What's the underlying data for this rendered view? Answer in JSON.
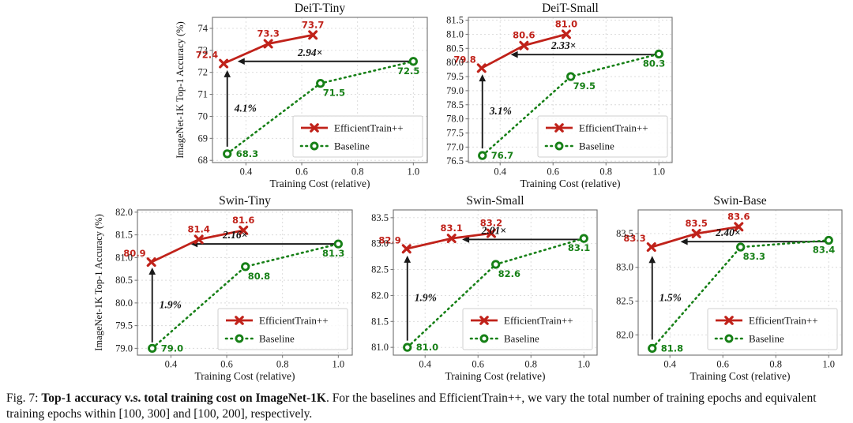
{
  "figure": {
    "caption": {
      "prefix": "Fig. 7: ",
      "bold": "Top-1 accuracy v.s. total training cost on ImageNet-1K",
      "rest": ". For the baselines and EfficientTrain++, we vary the total number of training epochs and equivalent training epochs within [100, 300] and [100, 200], respectively."
    }
  },
  "colors": {
    "efficienttrain": "#c0221a",
    "baseline": "#178017",
    "arrow": "#1a1a1a",
    "grid": "#d9d9d9",
    "spine": "#707070",
    "tick_text": "#1c1c1c"
  },
  "legend": {
    "efficienttrain_label": "EfficientTrain++",
    "baseline_label": "Baseline",
    "position": "lower right"
  },
  "chart_data": [
    {
      "type": "line",
      "title": "DeiT-Tiny",
      "xlabel": "Training Cost (relative)",
      "ylabel": "ImageNet-1K Top-1 Accuracy (%)",
      "xlim": [
        0.28,
        1.05
      ],
      "ylim": [
        67.9,
        74.5
      ],
      "xticks": [
        0.4,
        0.6,
        0.8,
        1.0
      ],
      "yticks": [
        68,
        69,
        70,
        71,
        72,
        73,
        74
      ],
      "ytick_decimals": 0,
      "grid": true,
      "series": [
        {
          "name": "EfficientTrain++",
          "x": [
            0.32,
            0.48,
            0.64
          ],
          "y": [
            72.4,
            73.3,
            73.7
          ],
          "point_labels": [
            "72.4",
            "73.3",
            "73.7"
          ]
        },
        {
          "name": "Baseline",
          "x": [
            0.333,
            0.667,
            1.0
          ],
          "y": [
            68.3,
            71.5,
            72.5
          ],
          "point_labels": [
            "68.3",
            "71.5",
            "72.5"
          ]
        }
      ],
      "speedup_annotation": {
        "text": "2.94×",
        "y": 72.5,
        "x_from": 1.0,
        "x_to": 0.37,
        "text_x": 0.63
      },
      "gain_annotation": {
        "text": "4.1%",
        "x": 0.333,
        "y_from": 68.62,
        "y_to": 72.1
      }
    },
    {
      "type": "line",
      "title": "DeiT-Small",
      "xlabel": "Training Cost (relative)",
      "ylabel": "",
      "xlim": [
        0.28,
        1.05
      ],
      "ylim": [
        76.45,
        81.6
      ],
      "xticks": [
        0.4,
        0.6,
        0.8,
        1.0
      ],
      "yticks": [
        76.5,
        77.0,
        77.5,
        78.0,
        78.5,
        79.0,
        79.5,
        80.0,
        80.5,
        81.0,
        81.5
      ],
      "ytick_decimals": 1,
      "grid": true,
      "series": [
        {
          "name": "EfficientTrain++",
          "x": [
            0.33,
            0.49,
            0.65
          ],
          "y": [
            79.8,
            80.6,
            81.0
          ],
          "point_labels": [
            "79.8",
            "80.6",
            "81.0"
          ]
        },
        {
          "name": "Baseline",
          "x": [
            0.333,
            0.667,
            1.0
          ],
          "y": [
            76.7,
            79.5,
            80.3
          ],
          "point_labels": [
            "76.7",
            "79.5",
            "80.3"
          ]
        }
      ],
      "speedup_annotation": {
        "text": "2.33×",
        "y": 80.28,
        "x_from": 1.0,
        "x_to": 0.44,
        "text_x": 0.64
      },
      "gain_annotation": {
        "text": "3.1%",
        "x": 0.333,
        "y_from": 76.95,
        "y_to": 79.58
      }
    },
    {
      "type": "line",
      "title": "Swin-Tiny",
      "xlabel": "Training Cost (relative)",
      "ylabel": "ImageNet-1K Top-1 Accuracy (%)",
      "xlim": [
        0.28,
        1.05
      ],
      "ylim": [
        78.85,
        82.05
      ],
      "xticks": [
        0.4,
        0.6,
        0.8,
        1.0
      ],
      "yticks": [
        79.0,
        79.5,
        80.0,
        80.5,
        81.0,
        81.5,
        82.0
      ],
      "ytick_decimals": 1,
      "grid": true,
      "series": [
        {
          "name": "EfficientTrain++",
          "x": [
            0.33,
            0.5,
            0.66
          ],
          "y": [
            80.9,
            81.4,
            81.6
          ],
          "point_labels": [
            "80.9",
            "81.4",
            "81.6"
          ]
        },
        {
          "name": "Baseline",
          "x": [
            0.333,
            0.667,
            1.0
          ],
          "y": [
            79.0,
            80.8,
            81.3
          ],
          "point_labels": [
            "79.0",
            "80.8",
            "81.3"
          ]
        }
      ],
      "speedup_annotation": {
        "text": "2.16×",
        "y": 81.3,
        "x_from": 1.0,
        "x_to": 0.47,
        "text_x": 0.63
      },
      "gain_annotation": {
        "text": "1.9%",
        "x": 0.333,
        "y_from": 79.13,
        "y_to": 80.78
      }
    },
    {
      "type": "line",
      "title": "Swin-Small",
      "xlabel": "Training Cost (relative)",
      "ylabel": "",
      "xlim": [
        0.28,
        1.05
      ],
      "ylim": [
        80.85,
        83.65
      ],
      "xticks": [
        0.4,
        0.6,
        0.8,
        1.0
      ],
      "yticks": [
        81.0,
        81.5,
        82.0,
        82.5,
        83.0,
        83.5
      ],
      "ytick_decimals": 1,
      "grid": true,
      "series": [
        {
          "name": "EfficientTrain++",
          "x": [
            0.33,
            0.5,
            0.65
          ],
          "y": [
            82.9,
            83.1,
            83.2
          ],
          "point_labels": [
            "82.9",
            "83.1",
            "83.2"
          ]
        },
        {
          "name": "Baseline",
          "x": [
            0.333,
            0.667,
            1.0
          ],
          "y": [
            81.0,
            82.6,
            83.1
          ],
          "point_labels": [
            "81.0",
            "82.6",
            "83.1"
          ]
        }
      ],
      "speedup_annotation": {
        "text": "2.01×",
        "y": 83.08,
        "x_from": 1.0,
        "x_to": 0.54,
        "text_x": 0.66
      },
      "gain_annotation": {
        "text": "1.9%",
        "x": 0.333,
        "y_from": 81.13,
        "y_to": 82.77
      }
    },
    {
      "type": "line",
      "title": "Swin-Base",
      "xlabel": "Training Cost (relative)",
      "ylabel": "",
      "xlim": [
        0.28,
        1.05
      ],
      "ylim": [
        81.7,
        83.85
      ],
      "xticks": [
        0.4,
        0.6,
        0.8,
        1.0
      ],
      "yticks": [
        82.0,
        82.5,
        83.0,
        83.5
      ],
      "ytick_decimals": 1,
      "grid": true,
      "series": [
        {
          "name": "EfficientTrain++",
          "x": [
            0.33,
            0.5,
            0.66
          ],
          "y": [
            83.3,
            83.5,
            83.6
          ],
          "point_labels": [
            "83.3",
            "83.5",
            "83.6"
          ]
        },
        {
          "name": "Baseline",
          "x": [
            0.333,
            0.667,
            1.0
          ],
          "y": [
            81.8,
            83.3,
            83.4
          ],
          "point_labels": [
            "81.8",
            "83.3",
            "83.4"
          ]
        }
      ],
      "speedup_annotation": {
        "text": "2.40×",
        "y": 83.38,
        "x_from": 1.0,
        "x_to": 0.44,
        "text_x": 0.62
      },
      "gain_annotation": {
        "text": "1.5%",
        "x": 0.333,
        "y_from": 81.93,
        "y_to": 83.17
      }
    }
  ]
}
